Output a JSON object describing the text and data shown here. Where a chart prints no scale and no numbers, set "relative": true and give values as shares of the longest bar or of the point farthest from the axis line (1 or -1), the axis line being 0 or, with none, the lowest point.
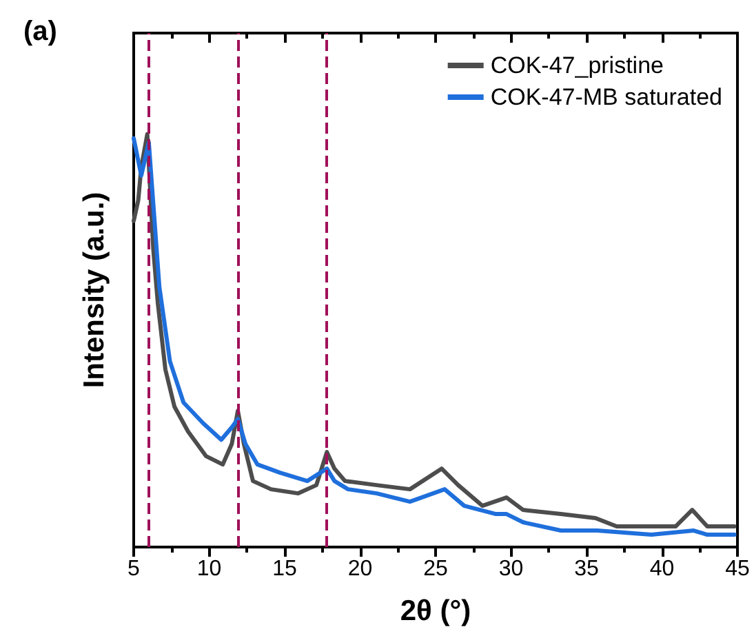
{
  "chart_data": {
    "type": "line",
    "title": "(a)",
    "xlabel": "2θ (°)",
    "ylabel": "Intensity (a.u.)",
    "relative": true,
    "xlim": [
      5,
      45
    ],
    "xticks": [
      5,
      10,
      15,
      20,
      25,
      30,
      35,
      40,
      45
    ],
    "grid": false,
    "legend": "top right",
    "marker": "none",
    "line_style": "solid",
    "series": [
      {
        "name": "COK-47_pristine",
        "color": "#4d4d4d",
        "x": [
          5.0,
          5.3,
          5.5,
          5.9,
          6.3,
          6.6,
          7.1,
          7.7,
          8.6,
          9.8,
          10.9,
          11.5,
          11.9,
          12.3,
          12.9,
          14.1,
          15.9,
          17.1,
          17.8,
          18.3,
          19.0,
          21.1,
          23.3,
          25.4,
          26.5,
          28.1,
          29.7,
          30.8,
          33.3,
          35.6,
          37.0,
          39.3,
          40.9,
          42.0,
          43.0,
          44.8
        ],
        "values": [
          0.79,
          0.84,
          0.92,
          1.0,
          0.72,
          0.59,
          0.43,
          0.34,
          0.28,
          0.22,
          0.2,
          0.25,
          0.33,
          0.25,
          0.16,
          0.14,
          0.13,
          0.15,
          0.23,
          0.19,
          0.16,
          0.15,
          0.14,
          0.19,
          0.15,
          0.1,
          0.12,
          0.09,
          0.08,
          0.07,
          0.05,
          0.05,
          0.05,
          0.09,
          0.05,
          0.05
        ]
      },
      {
        "name": "COK-47-MB saturated",
        "color": "#1f6fdc",
        "x": [
          5.0,
          5.5,
          6.0,
          6.3,
          6.7,
          7.4,
          8.3,
          9.6,
          10.8,
          11.5,
          11.9,
          12.4,
          13.2,
          14.7,
          16.5,
          17.8,
          18.3,
          19.2,
          21.1,
          23.3,
          25.6,
          26.9,
          29.0,
          29.7,
          30.8,
          33.3,
          35.7,
          39.3,
          42.1,
          43.0,
          44.8
        ],
        "values": [
          0.99,
          0.9,
          0.98,
          0.83,
          0.63,
          0.45,
          0.35,
          0.3,
          0.26,
          0.29,
          0.31,
          0.25,
          0.2,
          0.18,
          0.16,
          0.19,
          0.16,
          0.14,
          0.13,
          0.11,
          0.14,
          0.1,
          0.08,
          0.08,
          0.06,
          0.04,
          0.04,
          0.03,
          0.04,
          0.03,
          0.03
        ]
      }
    ],
    "ref_lines": [
      {
        "axis": "x",
        "value": 6.0,
        "color": "#a0105a",
        "line_style": "dashed"
      },
      {
        "axis": "x",
        "value": 11.9,
        "color": "#a0105a",
        "line_style": "dashed"
      },
      {
        "axis": "x",
        "value": 17.8,
        "color": "#a0105a",
        "line_style": "dashed"
      }
    ]
  }
}
